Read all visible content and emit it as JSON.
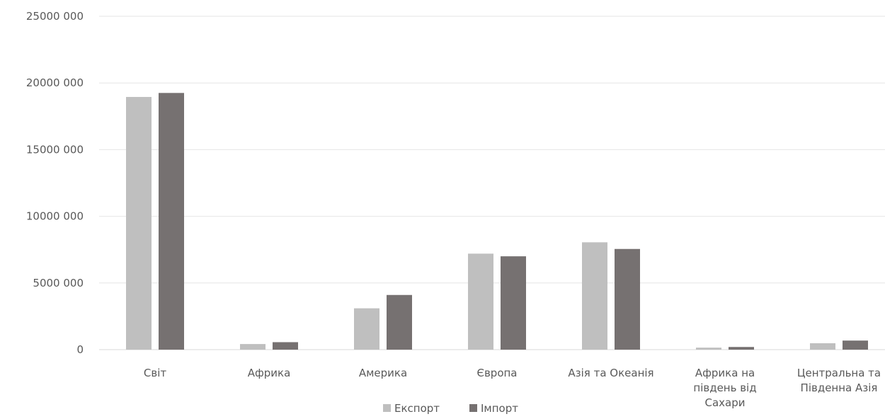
{
  "chart_data": {
    "type": "bar",
    "categories": [
      [
        "Світ"
      ],
      [
        "Африка"
      ],
      [
        "Америка"
      ],
      [
        "Європа"
      ],
      [
        "Азія та Океанія"
      ],
      [
        "Африка на",
        "південь від",
        "Сахари"
      ],
      [
        "Центральна та",
        "Південна Азія"
      ]
    ],
    "series": [
      {
        "name": "Експорт",
        "color": "#bfbfbf",
        "values": [
          18950000,
          420000,
          3100000,
          7200000,
          8050000,
          150000,
          480000
        ]
      },
      {
        "name": "Імпорт",
        "color": "#767171",
        "values": [
          19250000,
          560000,
          4100000,
          7000000,
          7550000,
          200000,
          680000
        ]
      }
    ],
    "yticks": [
      "0",
      "5000 000",
      "10000 000",
      "15000 000",
      "20000 000",
      "25000 000"
    ],
    "ylim": [
      0,
      25000000
    ],
    "grid": true,
    "legend_position": "bottom"
  }
}
